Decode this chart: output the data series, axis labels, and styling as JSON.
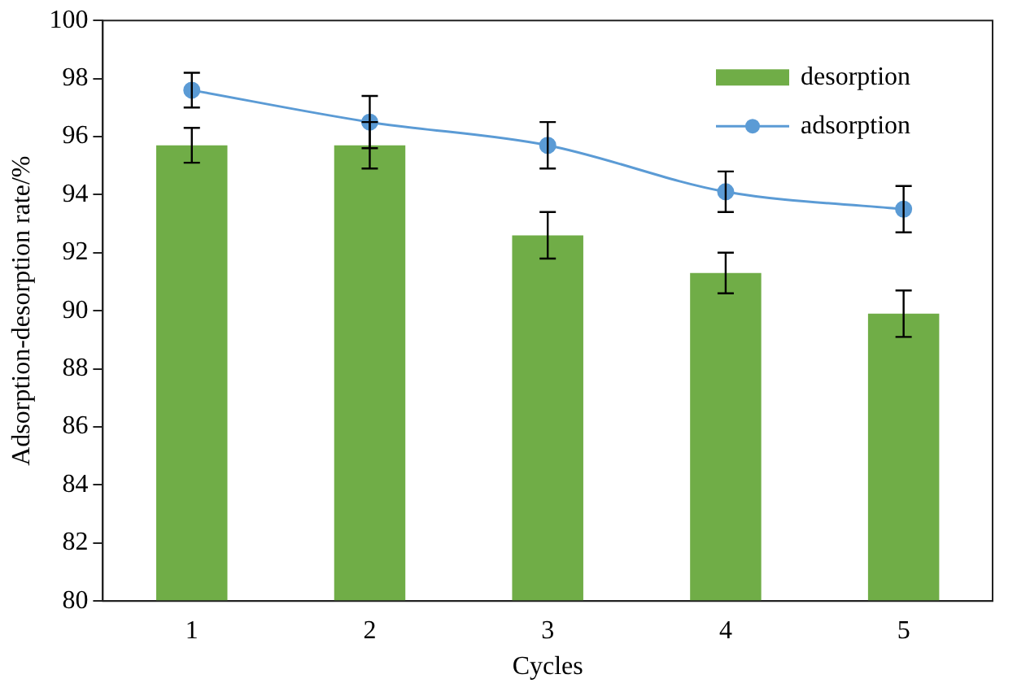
{
  "chart_data": {
    "type": "bar",
    "xlabel": "Cycles",
    "ylabel": "Adsorption-desorption rate/%",
    "categories": [
      "1",
      "2",
      "3",
      "4",
      "5"
    ],
    "series": [
      {
        "name": "desorption",
        "color": "#70ad47",
        "values": [
          95.7,
          95.7,
          92.6,
          91.3,
          89.9
        ],
        "errors": [
          0.6,
          0.8,
          0.8,
          0.7,
          0.8
        ]
      },
      {
        "name": "adsorption",
        "type": "line",
        "color": "#5b9bd5",
        "values": [
          97.6,
          96.5,
          95.7,
          94.1,
          93.5
        ],
        "errors": [
          0.6,
          0.9,
          0.8,
          0.7,
          0.8
        ],
        "marker": "circle"
      }
    ],
    "ylim": [
      80,
      100
    ],
    "yticks": [
      80,
      82,
      84,
      86,
      88,
      90,
      92,
      94,
      96,
      98,
      100
    ],
    "grid": false,
    "legend": "top right"
  }
}
